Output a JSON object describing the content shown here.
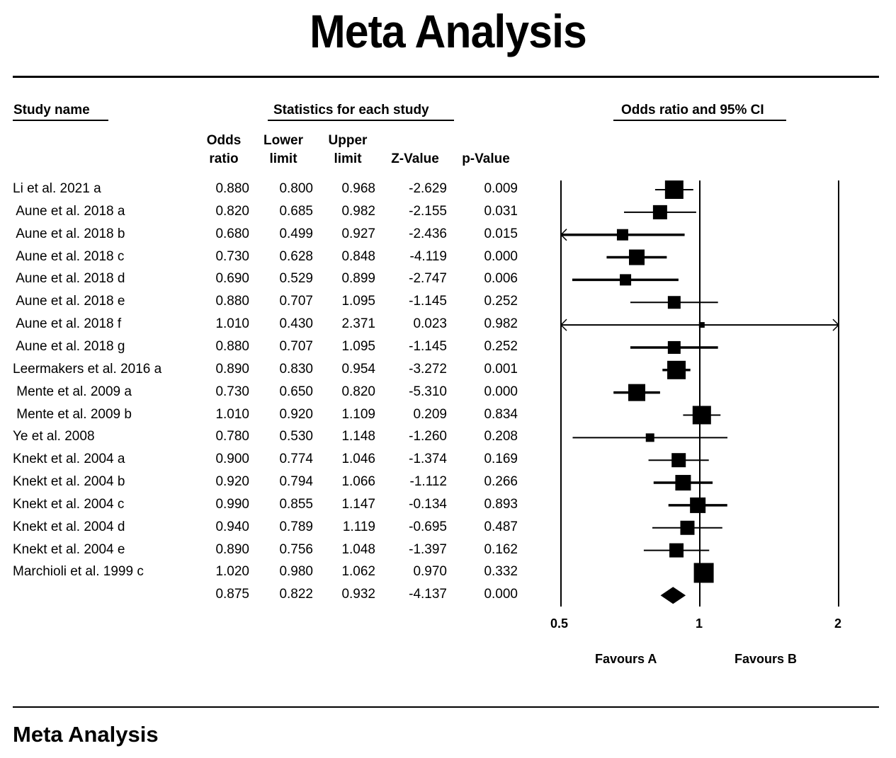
{
  "title": "Meta Analysis",
  "footer_title": "Meta Analysis",
  "headers": {
    "study_name": "Study name",
    "statistics": "Statistics for each study",
    "plot": "Odds ratio and 95% CI",
    "columns": [
      {
        "line1": "Odds",
        "line2": "ratio"
      },
      {
        "line1": "Lower",
        "line2": "limit"
      },
      {
        "line1": "Upper",
        "line2": "limit"
      },
      {
        "line1": "",
        "line2": "Z-Value"
      },
      {
        "line1": "",
        "line2": "p-Value"
      }
    ]
  },
  "rows": [
    {
      "name": "Li et al. 2021 a",
      "or": "0.880",
      "lower": "0.800",
      "upper": "0.968",
      "z": "-2.629",
      "p": "0.009"
    },
    {
      "name": " Aune et al. 2018 a",
      "or": "0.820",
      "lower": "0.685",
      "upper": "0.982",
      "z": "-2.155",
      "p": "0.031"
    },
    {
      "name": " Aune et al. 2018 b",
      "or": "0.680",
      "lower": "0.499",
      "upper": "0.927",
      "z": "-2.436",
      "p": "0.015"
    },
    {
      "name": " Aune et al. 2018 c",
      "or": "0.730",
      "lower": "0.628",
      "upper": "0.848",
      "z": "-4.119",
      "p": "0.000"
    },
    {
      "name": " Aune et al. 2018 d",
      "or": "0.690",
      "lower": "0.529",
      "upper": "0.899",
      "z": "-2.747",
      "p": "0.006"
    },
    {
      "name": " Aune et al. 2018 e",
      "or": "0.880",
      "lower": "0.707",
      "upper": "1.095",
      "z": "-1.145",
      "p": "0.252"
    },
    {
      "name": " Aune et al. 2018 f",
      "or": "1.010",
      "lower": "0.430",
      "upper": "2.371",
      "z": "0.023",
      "p": "0.982"
    },
    {
      "name": " Aune et al. 2018 g",
      "or": "0.880",
      "lower": "0.707",
      "upper": "1.095",
      "z": "-1.145",
      "p": "0.252"
    },
    {
      "name": "Leermakers et al. 2016 a",
      "or": "0.890",
      "lower": "0.830",
      "upper": "0.954",
      "z": "-3.272",
      "p": "0.001"
    },
    {
      "name": " Mente et al. 2009 a",
      "or": "0.730",
      "lower": "0.650",
      "upper": "0.820",
      "z": "-5.310",
      "p": "0.000"
    },
    {
      "name": " Mente et al. 2009 b",
      "or": "1.010",
      "lower": "0.920",
      "upper": "1.109",
      "z": "0.209",
      "p": "0.834"
    },
    {
      "name": "Ye et al. 2008",
      "or": "0.780",
      "lower": "0.530",
      "upper": "1.148",
      "z": "-1.260",
      "p": "0.208"
    },
    {
      "name": "Knekt et al. 2004 a",
      "or": "0.900",
      "lower": "0.774",
      "upper": "1.046",
      "z": "-1.374",
      "p": "0.169"
    },
    {
      "name": "Knekt et al. 2004 b",
      "or": "0.920",
      "lower": "0.794",
      "upper": "1.066",
      "z": "-1.112",
      "p": "0.266"
    },
    {
      "name": "Knekt et al. 2004 c",
      "or": "0.990",
      "lower": "0.855",
      "upper": "1.147",
      "z": "-0.134",
      "p": "0.893"
    },
    {
      "name": "Knekt et al. 2004 d",
      "or": "0.940",
      "lower": "0.789",
      "upper": "1.119",
      "z": "-0.695",
      "p": "0.487"
    },
    {
      "name": "Knekt et al. 2004 e",
      "or": "0.890",
      "lower": "0.756",
      "upper": "1.048",
      "z": "-1.397",
      "p": "0.162"
    },
    {
      "name": "Marchioli et al. 1999 c",
      "or": "1.020",
      "lower": "0.980",
      "upper": "1.062",
      "z": "0.970",
      "p": "0.332"
    },
    {
      "name": "",
      "or": "0.875",
      "lower": "0.822",
      "upper": "0.932",
      "z": "-4.137",
      "p": "0.000"
    }
  ],
  "chart_data": {
    "type": "forest",
    "title": "Odds ratio and 95% CI",
    "x_scale": "log",
    "xlim": [
      0.5,
      2
    ],
    "x_ticks": [
      "0.5",
      "1",
      "2"
    ],
    "reference_line": 1,
    "favours_left": "Favours A",
    "favours_right": "Favours B",
    "studies": [
      {
        "name": "Li et al. 2021 a",
        "or": 0.88,
        "lower": 0.8,
        "upper": 0.968,
        "weight": 13
      },
      {
        "name": "Aune et al. 2018 a",
        "or": 0.82,
        "lower": 0.685,
        "upper": 0.982,
        "weight": 10
      },
      {
        "name": "Aune et al. 2018 b",
        "or": 0.68,
        "lower": 0.499,
        "upper": 0.927,
        "weight": 8
      },
      {
        "name": "Aune et al. 2018 c",
        "or": 0.73,
        "lower": 0.628,
        "upper": 0.848,
        "weight": 11
      },
      {
        "name": "Aune et al. 2018 d",
        "or": 0.69,
        "lower": 0.529,
        "upper": 0.899,
        "weight": 8
      },
      {
        "name": "Aune et al. 2018 e",
        "or": 0.88,
        "lower": 0.707,
        "upper": 1.095,
        "weight": 9
      },
      {
        "name": "Aune et al. 2018 f",
        "or": 1.01,
        "lower": 0.43,
        "upper": 2.371,
        "weight": 4
      },
      {
        "name": "Aune et al. 2018 g",
        "or": 0.88,
        "lower": 0.707,
        "upper": 1.095,
        "weight": 9
      },
      {
        "name": "Leermakers et al. 2016 a",
        "or": 0.89,
        "lower": 0.83,
        "upper": 0.954,
        "weight": 13
      },
      {
        "name": "Mente et al. 2009 a",
        "or": 0.73,
        "lower": 0.65,
        "upper": 0.82,
        "weight": 12
      },
      {
        "name": "Mente et al. 2009 b",
        "or": 1.01,
        "lower": 0.92,
        "upper": 1.109,
        "weight": 13
      },
      {
        "name": "Ye et al. 2008",
        "or": 0.78,
        "lower": 0.53,
        "upper": 1.148,
        "weight": 6
      },
      {
        "name": "Knekt et al. 2004 a",
        "or": 0.9,
        "lower": 0.774,
        "upper": 1.046,
        "weight": 10
      },
      {
        "name": "Knekt et al. 2004 b",
        "or": 0.92,
        "lower": 0.794,
        "upper": 1.066,
        "weight": 11
      },
      {
        "name": "Knekt et al. 2004 c",
        "or": 0.99,
        "lower": 0.855,
        "upper": 1.147,
        "weight": 11
      },
      {
        "name": "Knekt et al. 2004 d",
        "or": 0.94,
        "lower": 0.789,
        "upper": 1.119,
        "weight": 10
      },
      {
        "name": "Knekt et al. 2004 e",
        "or": 0.89,
        "lower": 0.756,
        "upper": 1.048,
        "weight": 10
      },
      {
        "name": "Marchioli et al. 1999 c",
        "or": 1.02,
        "lower": 0.98,
        "upper": 1.062,
        "weight": 14
      }
    ],
    "summary": {
      "or": 0.875,
      "lower": 0.822,
      "upper": 0.932
    }
  }
}
